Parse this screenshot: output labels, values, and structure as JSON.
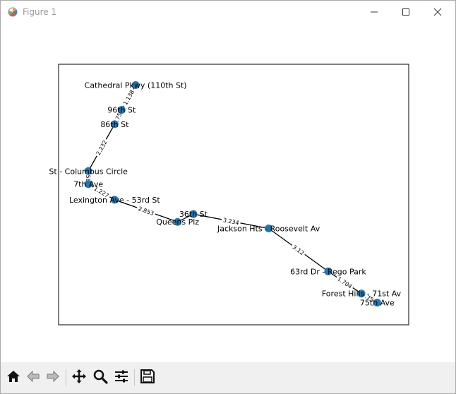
{
  "window": {
    "title": "Figure 1",
    "icons": {
      "app": "matplotlib-icon",
      "minimize": "minimize-icon",
      "maximize": "maximize-icon",
      "close": "close-icon"
    }
  },
  "chart_data": {
    "type": "network-graph",
    "axis_ranges": {
      "x": [
        0,
        10
      ],
      "y": [
        0,
        10
      ]
    },
    "grid": false,
    "node_color": "#1f77b4",
    "edge_color": "#000000",
    "nodes": [
      {
        "id": "cathedral",
        "label": "Cathedral Pkwy (110th St)",
        "x": 2.2,
        "y": 9.2
      },
      {
        "id": "96th",
        "label": "96th St",
        "x": 1.8,
        "y": 8.25
      },
      {
        "id": "86th",
        "label": "86th St",
        "x": 1.6,
        "y": 7.7
      },
      {
        "id": "columbus",
        "label": "St - Columbus Circle",
        "x": 0.85,
        "y": 5.9
      },
      {
        "id": "7th",
        "label": "7th Ave",
        "x": 0.85,
        "y": 5.4
      },
      {
        "id": "lexington",
        "label": "Lexington Ave - 53rd St",
        "x": 1.6,
        "y": 4.8
      },
      {
        "id": "queens",
        "label": "Queens Plz",
        "x": 3.4,
        "y": 3.95
      },
      {
        "id": "36th",
        "label": "36th St",
        "x": 3.85,
        "y": 4.25
      },
      {
        "id": "jackson",
        "label": "Jackson Hts - Roosevelt Av",
        "x": 6.0,
        "y": 3.7
      },
      {
        "id": "63rd",
        "label": "63rd Dr - Rego Park",
        "x": 7.7,
        "y": 2.05
      },
      {
        "id": "forest",
        "label": "Forest Hills - 71st Av",
        "x": 8.65,
        "y": 1.2
      },
      {
        "id": "75th",
        "label": "75th Ave",
        "x": 9.1,
        "y": 0.85
      }
    ],
    "edges": [
      {
        "source": "cathedral",
        "target": "96th",
        "weight": "1.138"
      },
      {
        "source": "96th",
        "target": "86th",
        "weight": ".75"
      },
      {
        "source": "86th",
        "target": "columbus",
        "weight": "2.232"
      },
      {
        "source": "columbus",
        "target": "7th",
        "weight": ".58"
      },
      {
        "source": "7th",
        "target": "lexington",
        "weight": "1.227"
      },
      {
        "source": "lexington",
        "target": "queens",
        "weight": "2.853"
      },
      {
        "source": "queens",
        "target": "36th",
        "weight": ""
      },
      {
        "source": "36th",
        "target": "jackson",
        "weight": "3.234"
      },
      {
        "source": "jackson",
        "target": "63rd",
        "weight": "3.12"
      },
      {
        "source": "63rd",
        "target": "forest",
        "weight": "1.704"
      },
      {
        "source": "forest",
        "target": "75th",
        "weight": ".75"
      }
    ]
  },
  "toolbar": {
    "buttons": [
      {
        "id": "home",
        "icon": "home-icon"
      },
      {
        "id": "back",
        "icon": "back-arrow-icon"
      },
      {
        "id": "forward",
        "icon": "forward-arrow-icon"
      },
      {
        "id": "pan",
        "icon": "pan-move-icon"
      },
      {
        "id": "zoom",
        "icon": "zoom-magnifier-icon"
      },
      {
        "id": "configure",
        "icon": "configure-subplots-icon"
      },
      {
        "id": "save",
        "icon": "save-floppy-icon"
      }
    ]
  }
}
